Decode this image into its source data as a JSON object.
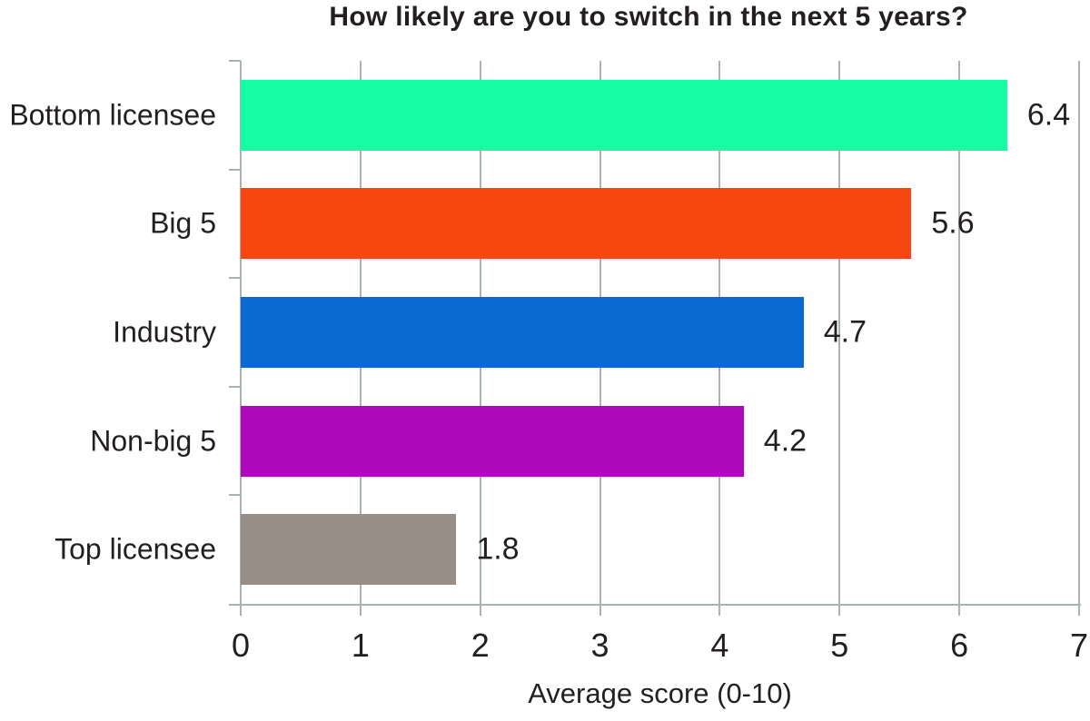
{
  "chart_data": {
    "type": "bar",
    "orientation": "horizontal",
    "title": "How likely are you to switch in the next 5 years?",
    "xlabel": "Average score (0-10)",
    "categories": [
      "Bottom licensee",
      "Big 5",
      "Industry",
      "Non-big 5",
      "Top licensee"
    ],
    "values": [
      6.4,
      5.6,
      4.7,
      4.2,
      1.8
    ],
    "value_labels": [
      "6.4",
      "5.6",
      "4.7",
      "4.2",
      "1.8"
    ],
    "bar_colors": [
      "#16fca3",
      "#f5470f",
      "#0a69d2",
      "#af08bc",
      "#998e85"
    ],
    "xlim": [
      0,
      7
    ],
    "xticks": [
      "0",
      "1",
      "2",
      "3",
      "4",
      "5",
      "6",
      "7"
    ],
    "grid": true,
    "legend": false,
    "gridline_color": "#a8b4b4",
    "text_color": "#231f20",
    "background": "#ffffff"
  }
}
